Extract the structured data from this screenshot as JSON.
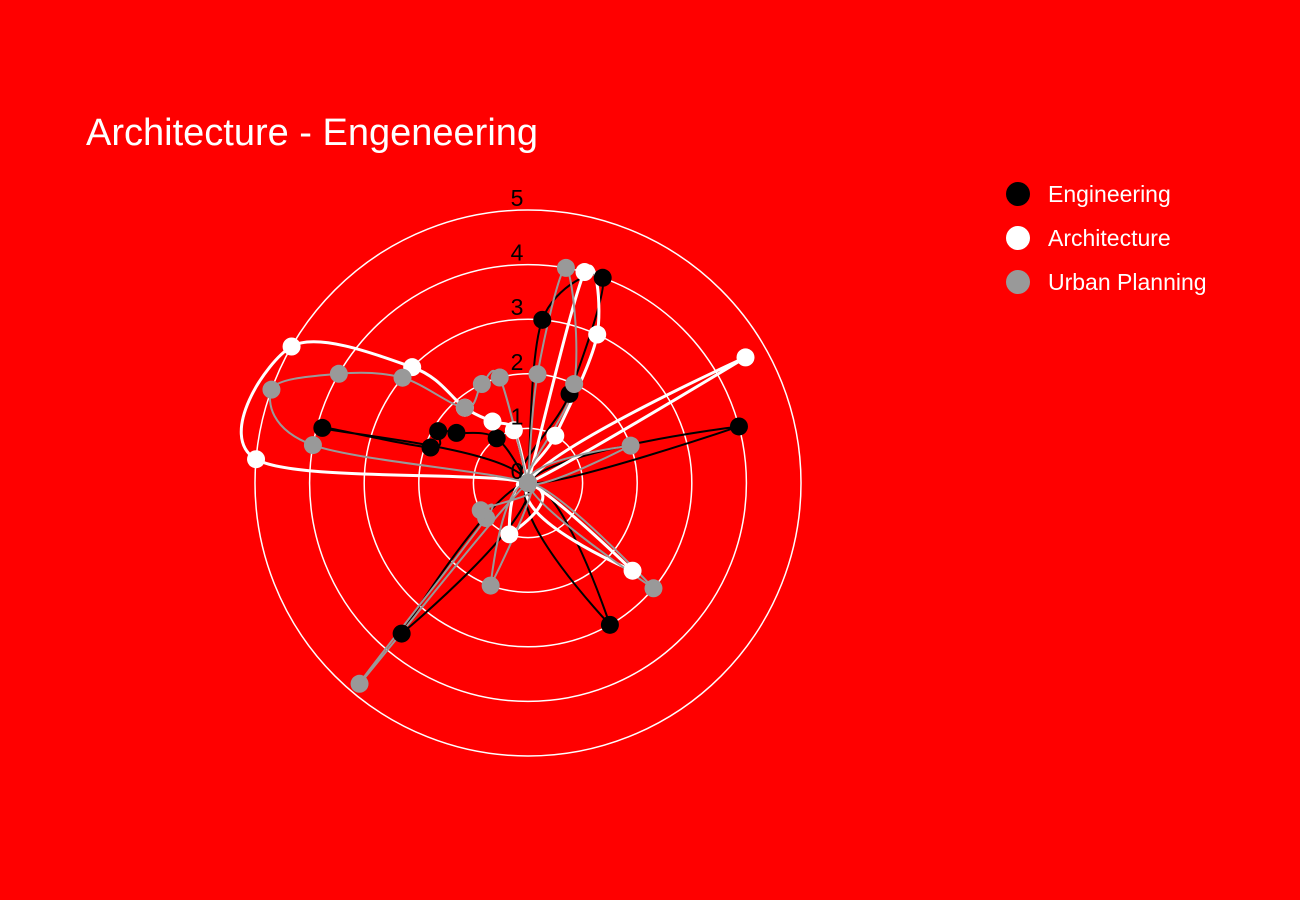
{
  "colors": {
    "background": "#ff0000",
    "grid": "#ffffff",
    "tick_text": "#000000",
    "title_text": "#ffffff",
    "legend_text": "#ffffff"
  },
  "chart_data": {
    "type": "polar-line",
    "title": "Architecture - Engeneering",
    "radial_range": [
      0,
      5
    ],
    "radial_ticks": [
      "0",
      "1",
      "2",
      "3",
      "4",
      "5"
    ],
    "angular_direction": "clockwise",
    "angular_zero": "north",
    "grid": true,
    "legend_position": "top-right",
    "curve": "spline",
    "series": [
      {
        "name": "Engineering",
        "color": "#000000",
        "stroke_width": 2,
        "points": [
          {
            "theta": 0,
            "r": 0
          },
          {
            "theta": 5,
            "r": 3
          },
          {
            "theta": 20,
            "r": 4
          },
          {
            "theta": 25,
            "r": 1.8
          },
          {
            "theta": 0,
            "r": 0
          },
          {
            "theta": 75,
            "r": 4
          },
          {
            "theta": 0,
            "r": 0
          },
          {
            "theta": 150,
            "r": 3
          },
          {
            "theta": 0,
            "r": 0
          },
          {
            "theta": 220,
            "r": 3.6
          },
          {
            "theta": 0,
            "r": 0
          },
          {
            "theta": 285,
            "r": 3.9
          },
          {
            "theta": 290,
            "r": 1.9
          },
          {
            "theta": 300,
            "r": 1.9
          },
          {
            "theta": 305,
            "r": 1.6
          },
          {
            "theta": 325,
            "r": 1
          },
          {
            "theta": 0,
            "r": 0
          }
        ]
      },
      {
        "name": "Architecture",
        "color": "#ffffff",
        "stroke_width": 3,
        "points": [
          {
            "theta": 0,
            "r": 0
          },
          {
            "theta": 15,
            "r": 4
          },
          {
            "theta": 25,
            "r": 3
          },
          {
            "theta": 30,
            "r": 1
          },
          {
            "theta": 0,
            "r": 0
          },
          {
            "theta": 60,
            "r": 4.6
          },
          {
            "theta": 0,
            "r": 0
          },
          {
            "theta": 130,
            "r": 2.5
          },
          {
            "theta": 0,
            "r": 0
          },
          {
            "theta": 200,
            "r": 1
          },
          {
            "theta": 0,
            "r": 0
          },
          {
            "theta": 275,
            "r": 5
          },
          {
            "theta": 300,
            "r": 5
          },
          {
            "theta": 315,
            "r": 3
          },
          {
            "theta": 320,
            "r": 1.8
          },
          {
            "theta": 330,
            "r": 1.3
          },
          {
            "theta": 345,
            "r": 1
          },
          {
            "theta": 0,
            "r": 0
          }
        ]
      },
      {
        "name": "Urban Planning",
        "color": "#999999",
        "stroke_width": 2,
        "points": [
          {
            "theta": 0,
            "r": 0
          },
          {
            "theta": 5,
            "r": 2
          },
          {
            "theta": 10,
            "r": 4
          },
          {
            "theta": 25,
            "r": 2
          },
          {
            "theta": 0,
            "r": 0
          },
          {
            "theta": 70,
            "r": 2
          },
          {
            "theta": 0,
            "r": 0
          },
          {
            "theta": 130,
            "r": 3
          },
          {
            "theta": 0,
            "r": 0
          },
          {
            "theta": 200,
            "r": 2
          },
          {
            "theta": 0,
            "r": 0
          },
          {
            "theta": 220,
            "r": 4.8
          },
          {
            "theta": 230,
            "r": 1
          },
          {
            "theta": 240,
            "r": 1
          },
          {
            "theta": 0,
            "r": 0
          },
          {
            "theta": 280,
            "r": 4
          },
          {
            "theta": 290,
            "r": 5
          },
          {
            "theta": 300,
            "r": 4
          },
          {
            "theta": 310,
            "r": 3
          },
          {
            "theta": 320,
            "r": 1.8
          },
          {
            "theta": 335,
            "r": 2
          },
          {
            "theta": 345,
            "r": 2
          },
          {
            "theta": 0,
            "r": 0
          }
        ]
      }
    ]
  }
}
